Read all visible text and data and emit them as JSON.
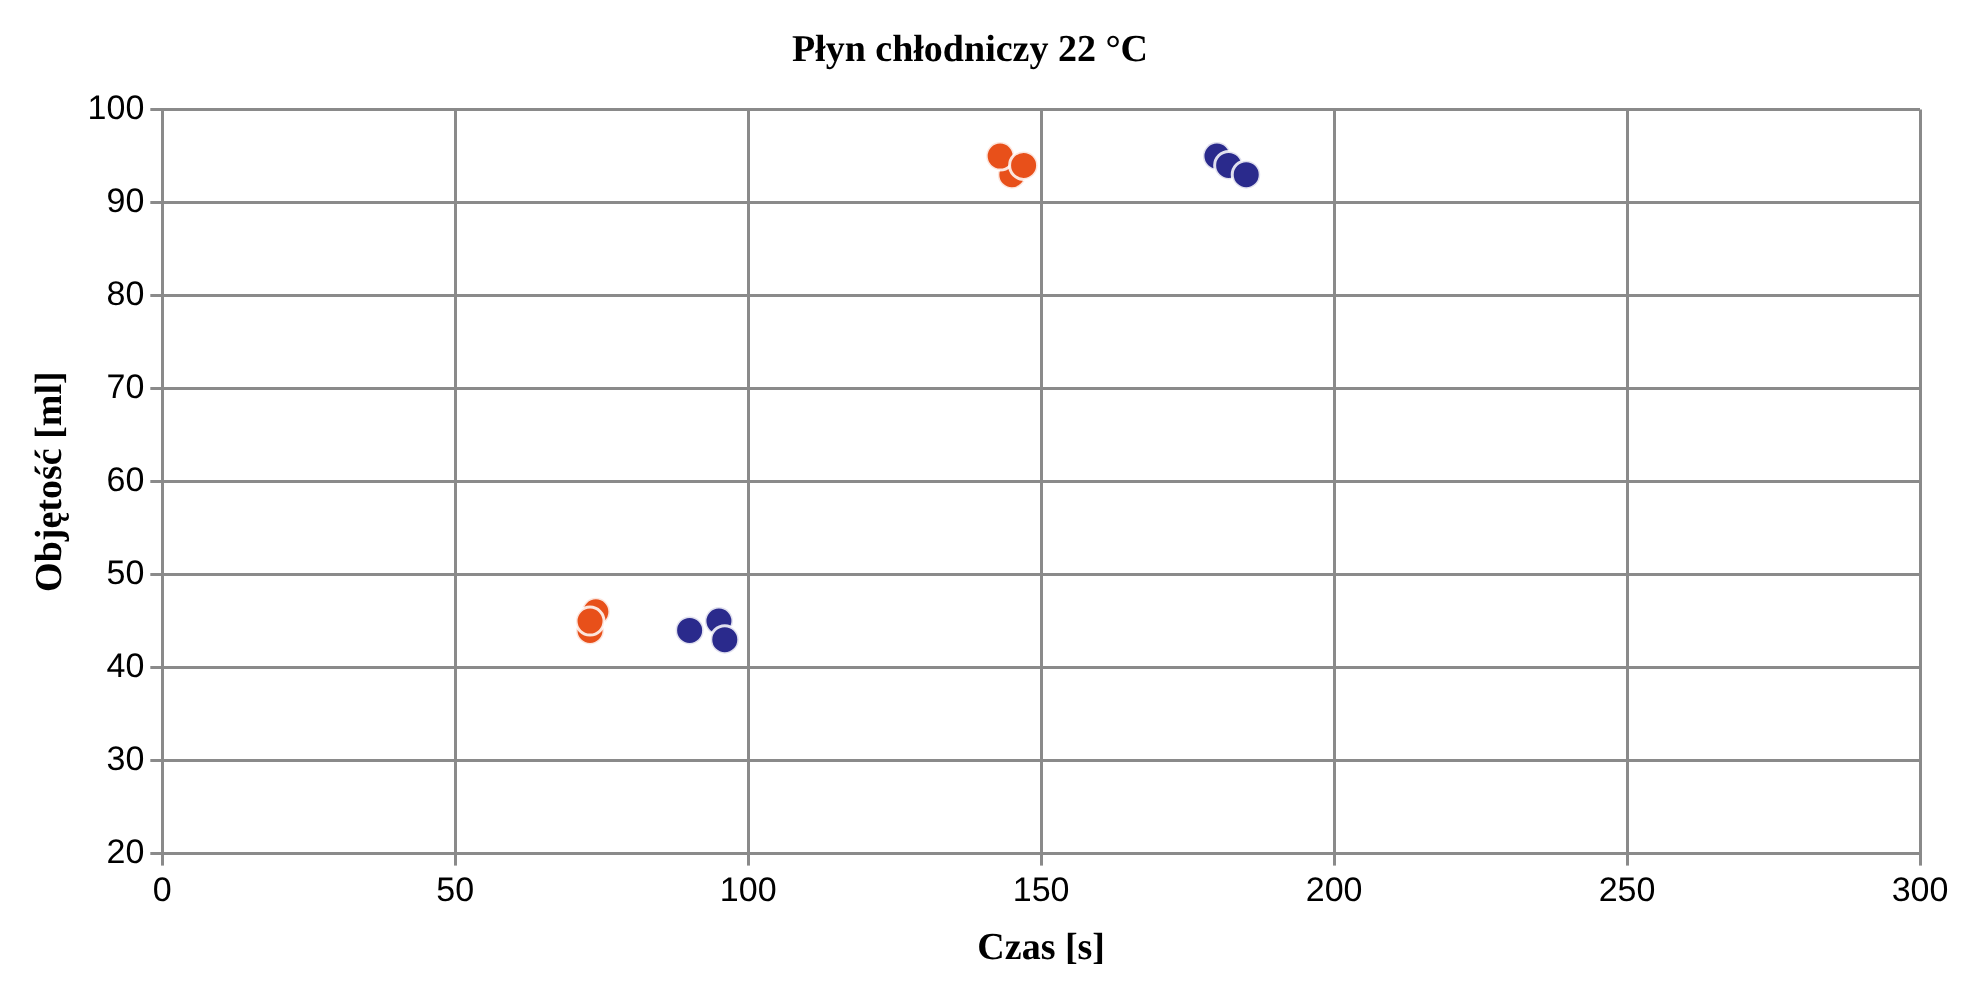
{
  "chart_data": {
    "type": "scatter",
    "title": "Płyn chłodniczy 22 °C",
    "xlabel": "Czas [s]",
    "ylabel": "Objętość [ml]",
    "series": [
      {
        "color": "#e8501a",
        "x": [
          73,
          74,
          73,
          145,
          143,
          147
        ],
        "values": [
          44,
          46,
          45,
          93,
          95,
          94
        ]
      },
      {
        "color": "#2a2a8c",
        "x": [
          90,
          95,
          96,
          180,
          182,
          185
        ],
        "values": [
          44,
          45,
          43,
          95,
          94,
          93
        ]
      }
    ],
    "xlim": [
      0,
      300
    ],
    "xticks": [
      0,
      50,
      100,
      150,
      200,
      250,
      300
    ],
    "ylim": [
      20,
      100
    ],
    "yticks": [
      20,
      30,
      40,
      50,
      60,
      70,
      80,
      90,
      100
    ],
    "grid": true,
    "legend": false,
    "marker": "circle"
  }
}
